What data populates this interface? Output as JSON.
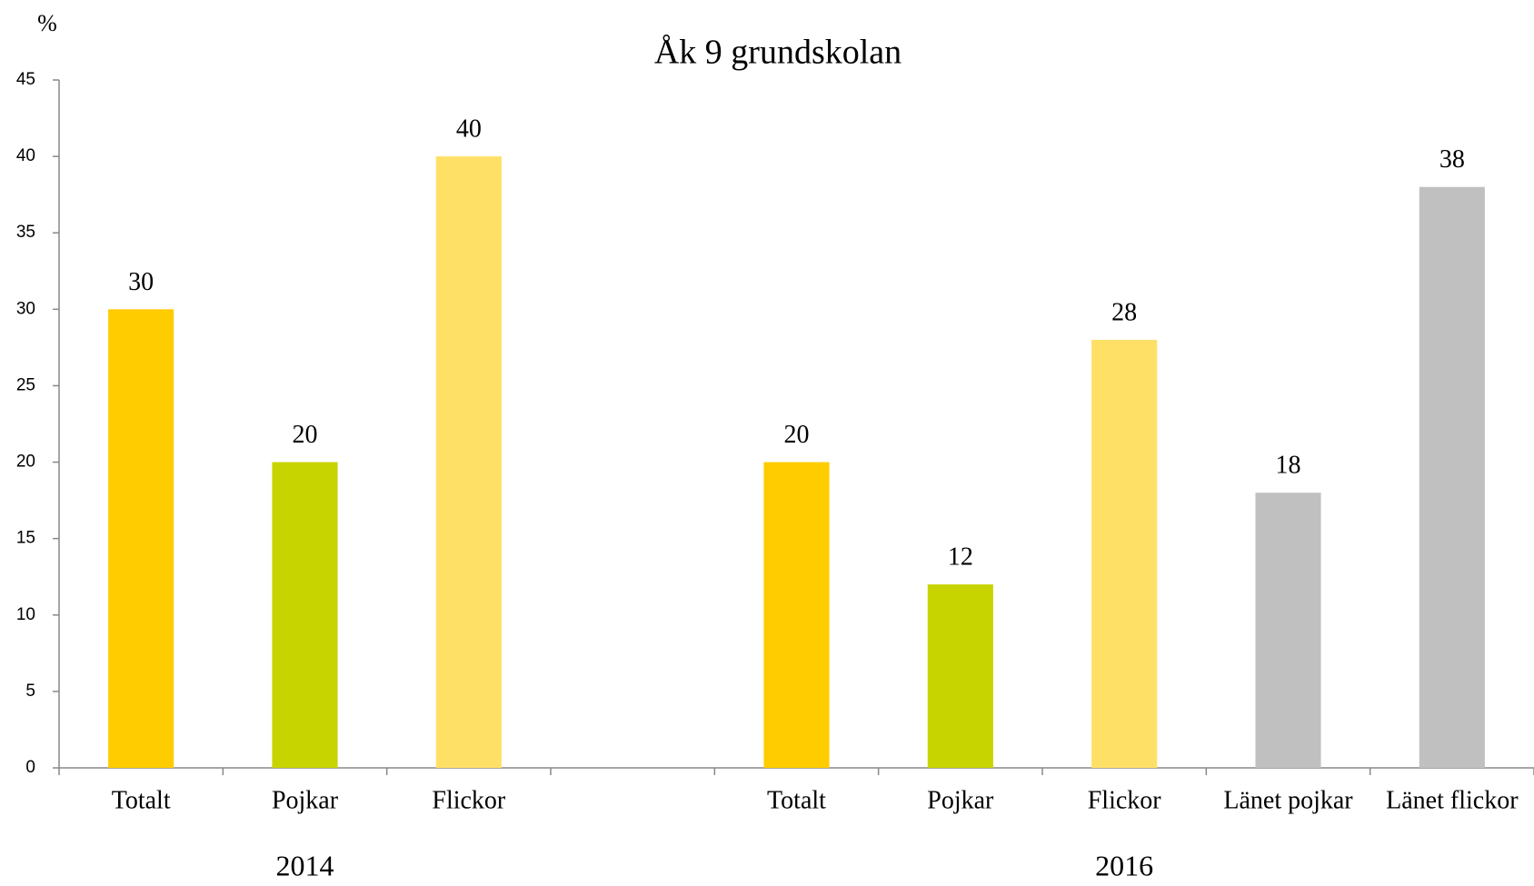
{
  "chart_data": {
    "type": "bar",
    "title": "Åk 9 grundskolan",
    "y_label": "%",
    "categories": [
      "Totalt",
      "Pojkar",
      "Flickor",
      null,
      "Totalt",
      "Pojkar",
      "Flickor",
      "Länet pojkar",
      "Länet flickor"
    ],
    "values": [
      30,
      20,
      40,
      null,
      20,
      12,
      28,
      18,
      38
    ],
    "colors": [
      "#FFCC00",
      "#C8D400",
      "#FFE066",
      null,
      "#FFCC00",
      "#C8D400",
      "#FFE066",
      "#C0C0C0",
      "#C0C0C0"
    ],
    "group_labels": [
      "2014",
      "2016"
    ],
    "ylim": [
      0,
      45
    ],
    "yticks": [
      0,
      5,
      10,
      15,
      20,
      25,
      30,
      35,
      40,
      45
    ],
    "grid": false
  }
}
